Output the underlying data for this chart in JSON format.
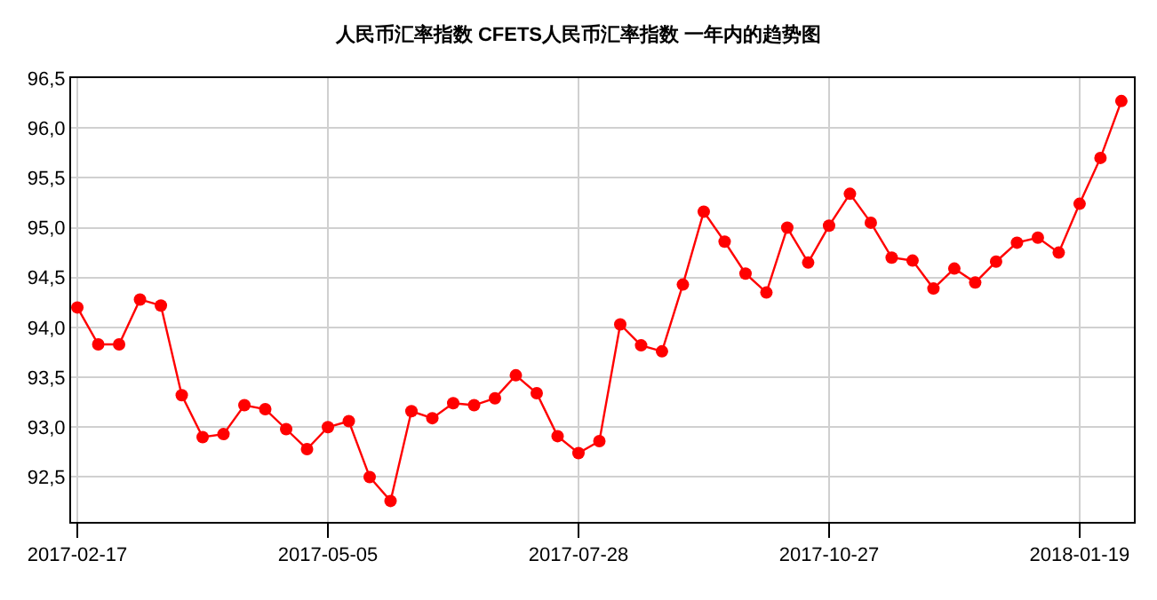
{
  "chart_data": {
    "type": "line",
    "title": "人民币汇率指数 CFETS人民币汇率指数 一年内的趋势图",
    "categories": [
      "2017-02-17",
      null,
      null,
      null,
      null,
      null,
      null,
      null,
      null,
      null,
      null,
      null,
      "2017-05-05",
      null,
      null,
      null,
      null,
      null,
      null,
      null,
      null,
      null,
      null,
      null,
      "2017-07-28",
      null,
      null,
      null,
      null,
      null,
      null,
      null,
      null,
      null,
      null,
      null,
      "2017-10-27",
      null,
      null,
      null,
      null,
      null,
      null,
      null,
      null,
      null,
      null,
      null,
      "2018-01-19",
      null,
      null
    ],
    "series": [
      {
        "color": "#ff0000",
        "values": [
          94.2,
          93.83,
          93.83,
          94.28,
          94.22,
          93.32,
          92.9,
          92.93,
          93.22,
          93.18,
          92.98,
          92.78,
          93.0,
          93.06,
          92.5,
          92.26,
          93.16,
          93.09,
          93.24,
          93.22,
          93.29,
          93.52,
          93.34,
          92.91,
          92.74,
          92.86,
          94.03,
          93.82,
          93.76,
          94.43,
          95.16,
          94.86,
          94.54,
          94.35,
          95.0,
          94.65,
          95.02,
          95.34,
          95.05,
          94.7,
          94.67,
          94.39,
          94.59,
          94.45,
          94.66,
          94.85,
          94.9,
          94.75,
          95.24,
          95.7,
          96.27
        ]
      }
    ],
    "ylim": [
      92.05,
      96.5
    ],
    "yticks": [
      {
        "value": 92.5,
        "label": "92,5"
      },
      {
        "value": 93.0,
        "label": "93,0"
      },
      {
        "value": 93.5,
        "label": "93,5"
      },
      {
        "value": 94.0,
        "label": "94,0"
      },
      {
        "value": 94.5,
        "label": "94,5"
      },
      {
        "value": 95.0,
        "label": "95,0"
      },
      {
        "value": 95.5,
        "label": "95,5"
      },
      {
        "value": 96.0,
        "label": "96,0"
      },
      {
        "value": 96.5,
        "label": "96,5"
      }
    ],
    "grid": true,
    "marker": "circle",
    "line_style": "solid"
  }
}
